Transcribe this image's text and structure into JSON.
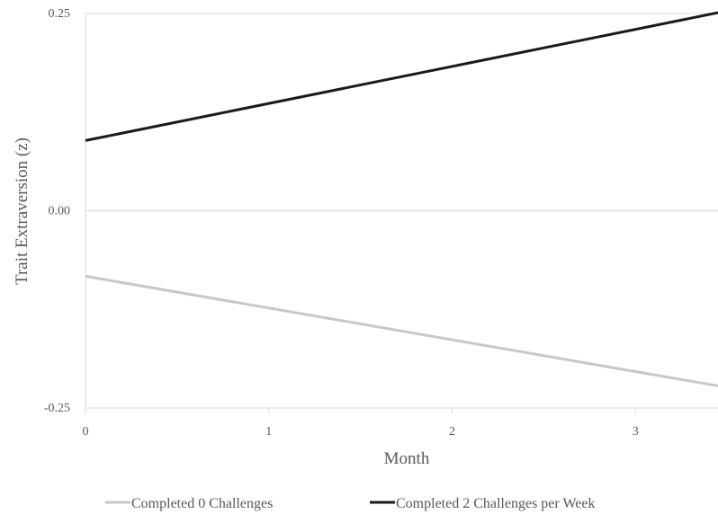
{
  "chart_data": {
    "type": "line",
    "title": "",
    "xlabel": "Month",
    "ylabel": "Trait Extraversion (z)",
    "xlim": [
      0,
      3.45
    ],
    "ylim": [
      -0.25,
      0.25
    ],
    "x_ticks": [
      0,
      1,
      2,
      3
    ],
    "x_tick_labels": [
      "0",
      "1",
      "2",
      "3"
    ],
    "y_ticks": [
      -0.25,
      0,
      0.25
    ],
    "y_tick_labels": [
      "-0.25",
      "0.00",
      "0.25"
    ],
    "grid": true,
    "legend_position": "bottom",
    "series": [
      {
        "name": "Completed 0 Challenges",
        "color": "#c8c8c8",
        "x": [
          0,
          3.45
        ],
        "values": [
          -0.083,
          -0.222
        ]
      },
      {
        "name": "Completed 2 Challenges per Week",
        "color": "#1a1a1a",
        "x": [
          0,
          3.45
        ],
        "values": [
          0.089,
          0.251
        ]
      }
    ]
  }
}
